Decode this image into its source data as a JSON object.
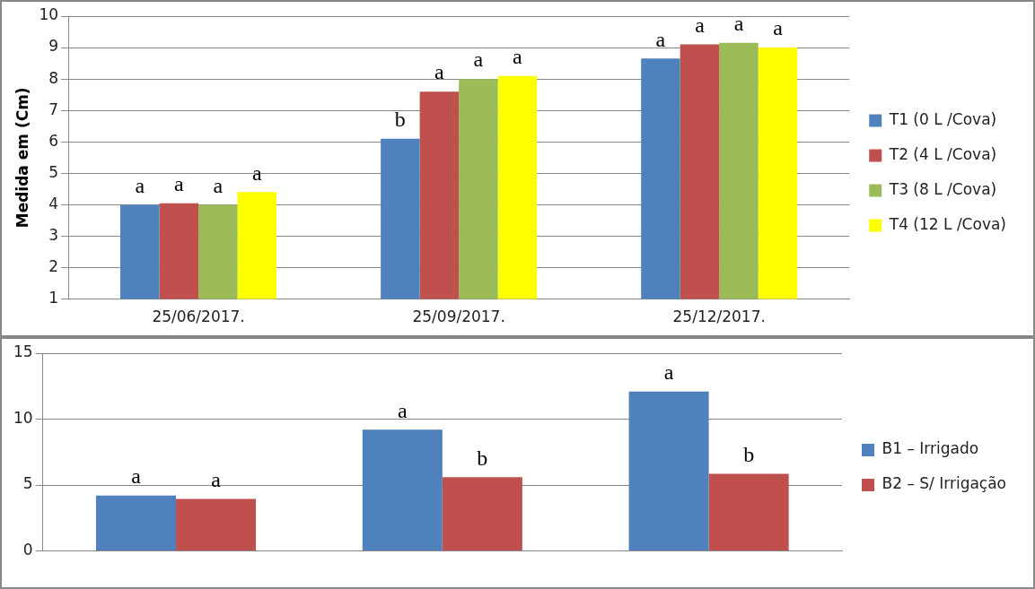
{
  "chart_data": [
    {
      "type": "bar",
      "ylabel": "Medida em (Cm)",
      "categories": [
        "25/06/2017.",
        "25/09/2017.",
        "25/12/2017."
      ],
      "ylim": [
        1,
        10
      ],
      "yticks": [
        1,
        2,
        3,
        4,
        5,
        6,
        7,
        8,
        9,
        10
      ],
      "grid": "y",
      "legend": "right",
      "series": [
        {
          "name": "T1 (0 L /Cova)",
          "color": "#4f81bd",
          "values": [
            4.0,
            6.1,
            8.65
          ],
          "value_labels": [
            "a",
            "b",
            "a"
          ]
        },
        {
          "name": "T2 (4 L /Cova)",
          "color": "#c0504d",
          "values": [
            4.05,
            7.6,
            9.1
          ],
          "value_labels": [
            "a",
            "a",
            "a"
          ]
        },
        {
          "name": "T3 (8 L /Cova)",
          "color": "#9bbb59",
          "values": [
            4.0,
            8.0,
            9.15
          ],
          "value_labels": [
            "a",
            "a",
            "a"
          ]
        },
        {
          "name": "T4 (12 L /Cova)",
          "color": "#ffff00",
          "values": [
            4.4,
            8.1,
            9.0
          ],
          "value_labels": [
            "a",
            "a",
            "a"
          ]
        }
      ]
    },
    {
      "type": "bar",
      "categories": [
        null,
        null,
        null
      ],
      "ylim": [
        0,
        15
      ],
      "yticks": [
        0,
        5,
        10,
        15
      ],
      "grid": "y",
      "legend": "right",
      "series": [
        {
          "name": "B1 – Irrigado",
          "color": "#4f81bd",
          "values": [
            4.2,
            9.2,
            12.1
          ],
          "value_labels": [
            "a",
            "a",
            "a"
          ]
        },
        {
          "name": "B2 – S/ Irrigação",
          "color": "#c0504d",
          "values": [
            3.95,
            5.6,
            5.85
          ],
          "value_labels": [
            "a",
            "b",
            "b"
          ]
        }
      ]
    }
  ]
}
